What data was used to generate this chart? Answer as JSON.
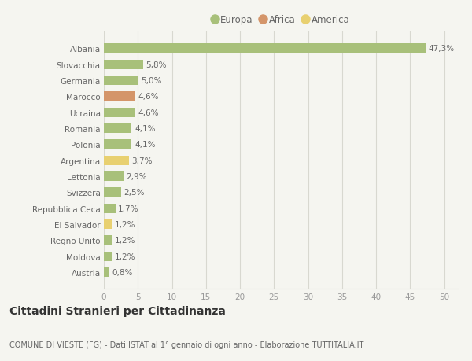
{
  "countries": [
    "Albania",
    "Slovacchia",
    "Germania",
    "Marocco",
    "Ucraina",
    "Romania",
    "Polonia",
    "Argentina",
    "Lettonia",
    "Svizzera",
    "Repubblica Ceca",
    "El Salvador",
    "Regno Unito",
    "Moldova",
    "Austria"
  ],
  "values": [
    47.3,
    5.8,
    5.0,
    4.6,
    4.6,
    4.1,
    4.1,
    3.7,
    2.9,
    2.5,
    1.7,
    1.2,
    1.2,
    1.2,
    0.8
  ],
  "labels": [
    "47,3%",
    "5,8%",
    "5,0%",
    "4,6%",
    "4,6%",
    "4,1%",
    "4,1%",
    "3,7%",
    "2,9%",
    "2,5%",
    "1,7%",
    "1,2%",
    "1,2%",
    "1,2%",
    "0,8%"
  ],
  "continents": [
    "Europa",
    "Europa",
    "Europa",
    "Africa",
    "Europa",
    "Europa",
    "Europa",
    "America",
    "Europa",
    "Europa",
    "Europa",
    "America",
    "Europa",
    "Europa",
    "Europa"
  ],
  "colors": {
    "Europa": "#a8c07a",
    "Africa": "#d4956a",
    "America": "#e8d070"
  },
  "legend_order": [
    "Europa",
    "Africa",
    "America"
  ],
  "legend_colors": {
    "Europa": "#a8c07a",
    "Africa": "#d4956a",
    "America": "#e8d070"
  },
  "background_color": "#f5f5f0",
  "title": "Cittadini Stranieri per Cittadinanza",
  "subtitle": "COMUNE DI VIESTE (FG) - Dati ISTAT al 1° gennaio di ogni anno - Elaborazione TUTTITALIA.IT",
  "xlim": [
    0,
    52
  ],
  "xticks": [
    0,
    5,
    10,
    15,
    20,
    25,
    30,
    35,
    40,
    45,
    50
  ],
  "grid_color": "#d8d8d0",
  "bar_height": 0.6,
  "label_fontsize": 7.5,
  "tick_fontsize": 7.5,
  "title_fontsize": 10,
  "subtitle_fontsize": 7
}
